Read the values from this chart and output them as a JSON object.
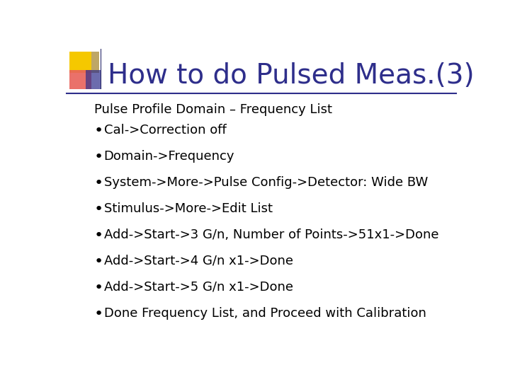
{
  "title": "How to do Pulsed Meas.(3)",
  "title_color": "#2E2E8B",
  "title_fontsize": 28,
  "subtitle": "Pulse Profile Domain – Frequency List",
  "subtitle_fontsize": 13,
  "bullet_fontsize": 13,
  "bullets": [
    "Cal->Correction off",
    "Domain->Frequency",
    "System->More->Pulse Config->Detector: Wide BW",
    "Stimulus->More->Edit List",
    "Add->Start->3 G/n, Number of Points->51x1->Done",
    "Add->Start->4 G/n x1->Done",
    "Add->Start->5 G/n x1->Done",
    "Done Frequency List, and Proceed with Calibration"
  ],
  "background_color": "#FFFFFF",
  "text_color": "#000000",
  "line_color": "#2E2E8B",
  "logo_yellow": "#F5C800",
  "logo_red": "#E8625A",
  "logo_blue": "#2E2E8B",
  "logo_blue_gradient": "#8888CC"
}
